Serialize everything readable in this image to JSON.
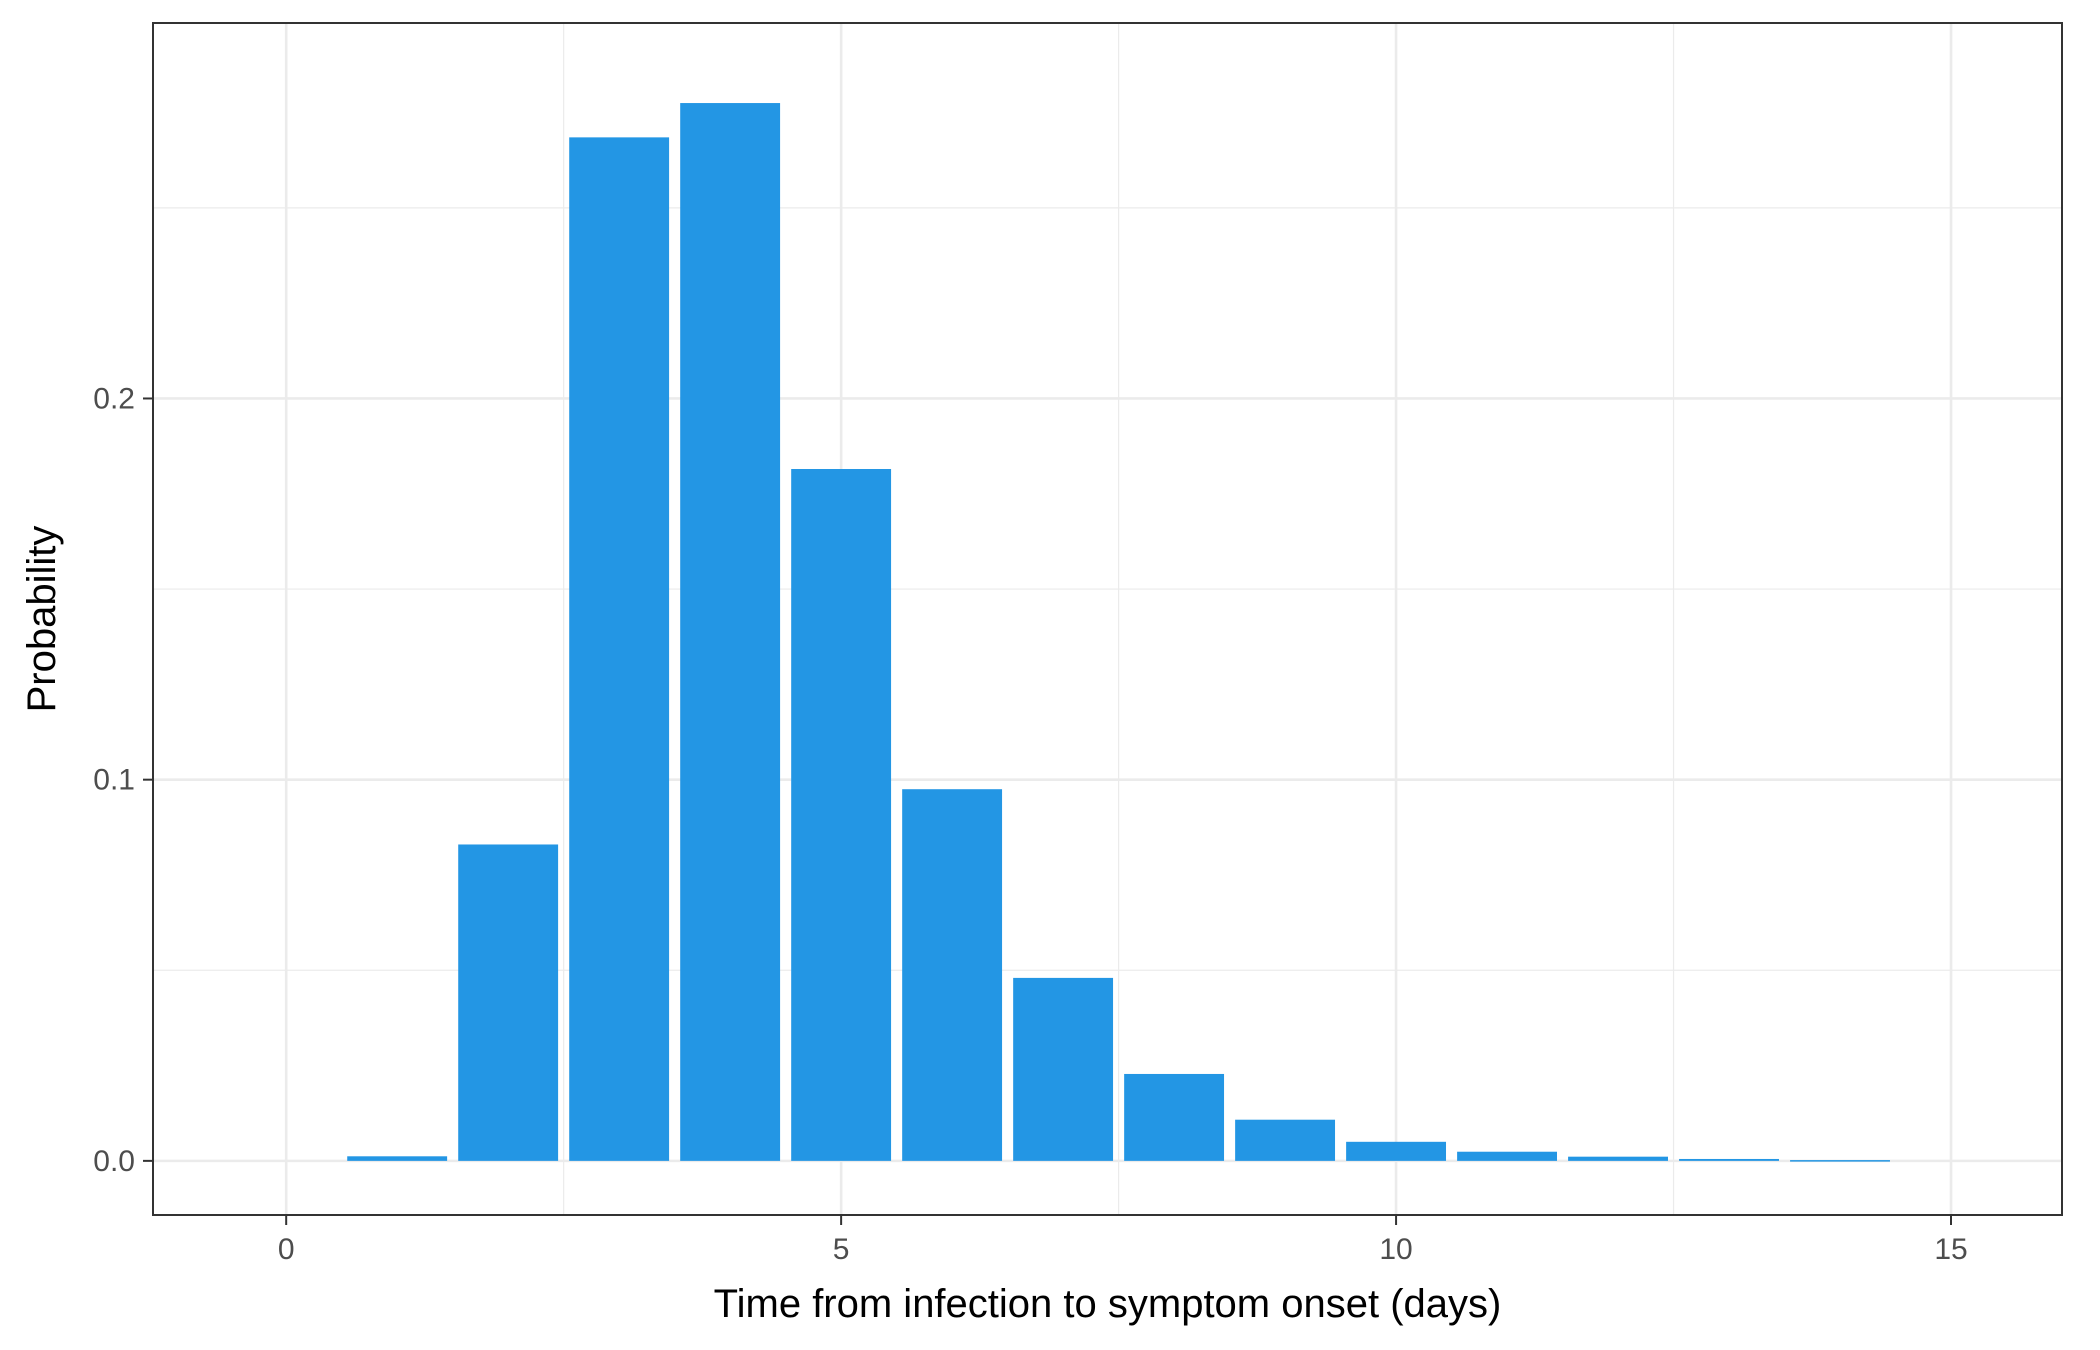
{
  "chart_data": {
    "type": "bar",
    "title": "",
    "xlabel": "Time from infection to symptom onset (days)",
    "ylabel": "Probability",
    "x": [
      1,
      2,
      3,
      4,
      5,
      6,
      7,
      8,
      9,
      10,
      11,
      12,
      13,
      14
    ],
    "values": [
      0.0012,
      0.083,
      0.2685,
      0.2775,
      0.1815,
      0.0975,
      0.048,
      0.0228,
      0.0108,
      0.005,
      0.0024,
      0.0011,
      0.0005,
      0.0002
    ],
    "xlim": [
      -1.2,
      16
    ],
    "ylim": [
      -0.0142,
      0.2985
    ],
    "x_ticks": [
      0,
      5,
      10,
      15
    ],
    "x_tick_labels": [
      "0",
      "5",
      "10",
      "15"
    ],
    "y_ticks": [
      0.0,
      0.1,
      0.2
    ],
    "y_tick_labels": [
      "0.0",
      "0.1",
      "0.2"
    ],
    "grid": true,
    "legend": "none",
    "colors": {
      "bar": "#2396E4",
      "grid": "#EBEBEB",
      "panel_border": "#333333",
      "tick_text": "#4D4D4D",
      "axis_title": "#000000"
    }
  }
}
